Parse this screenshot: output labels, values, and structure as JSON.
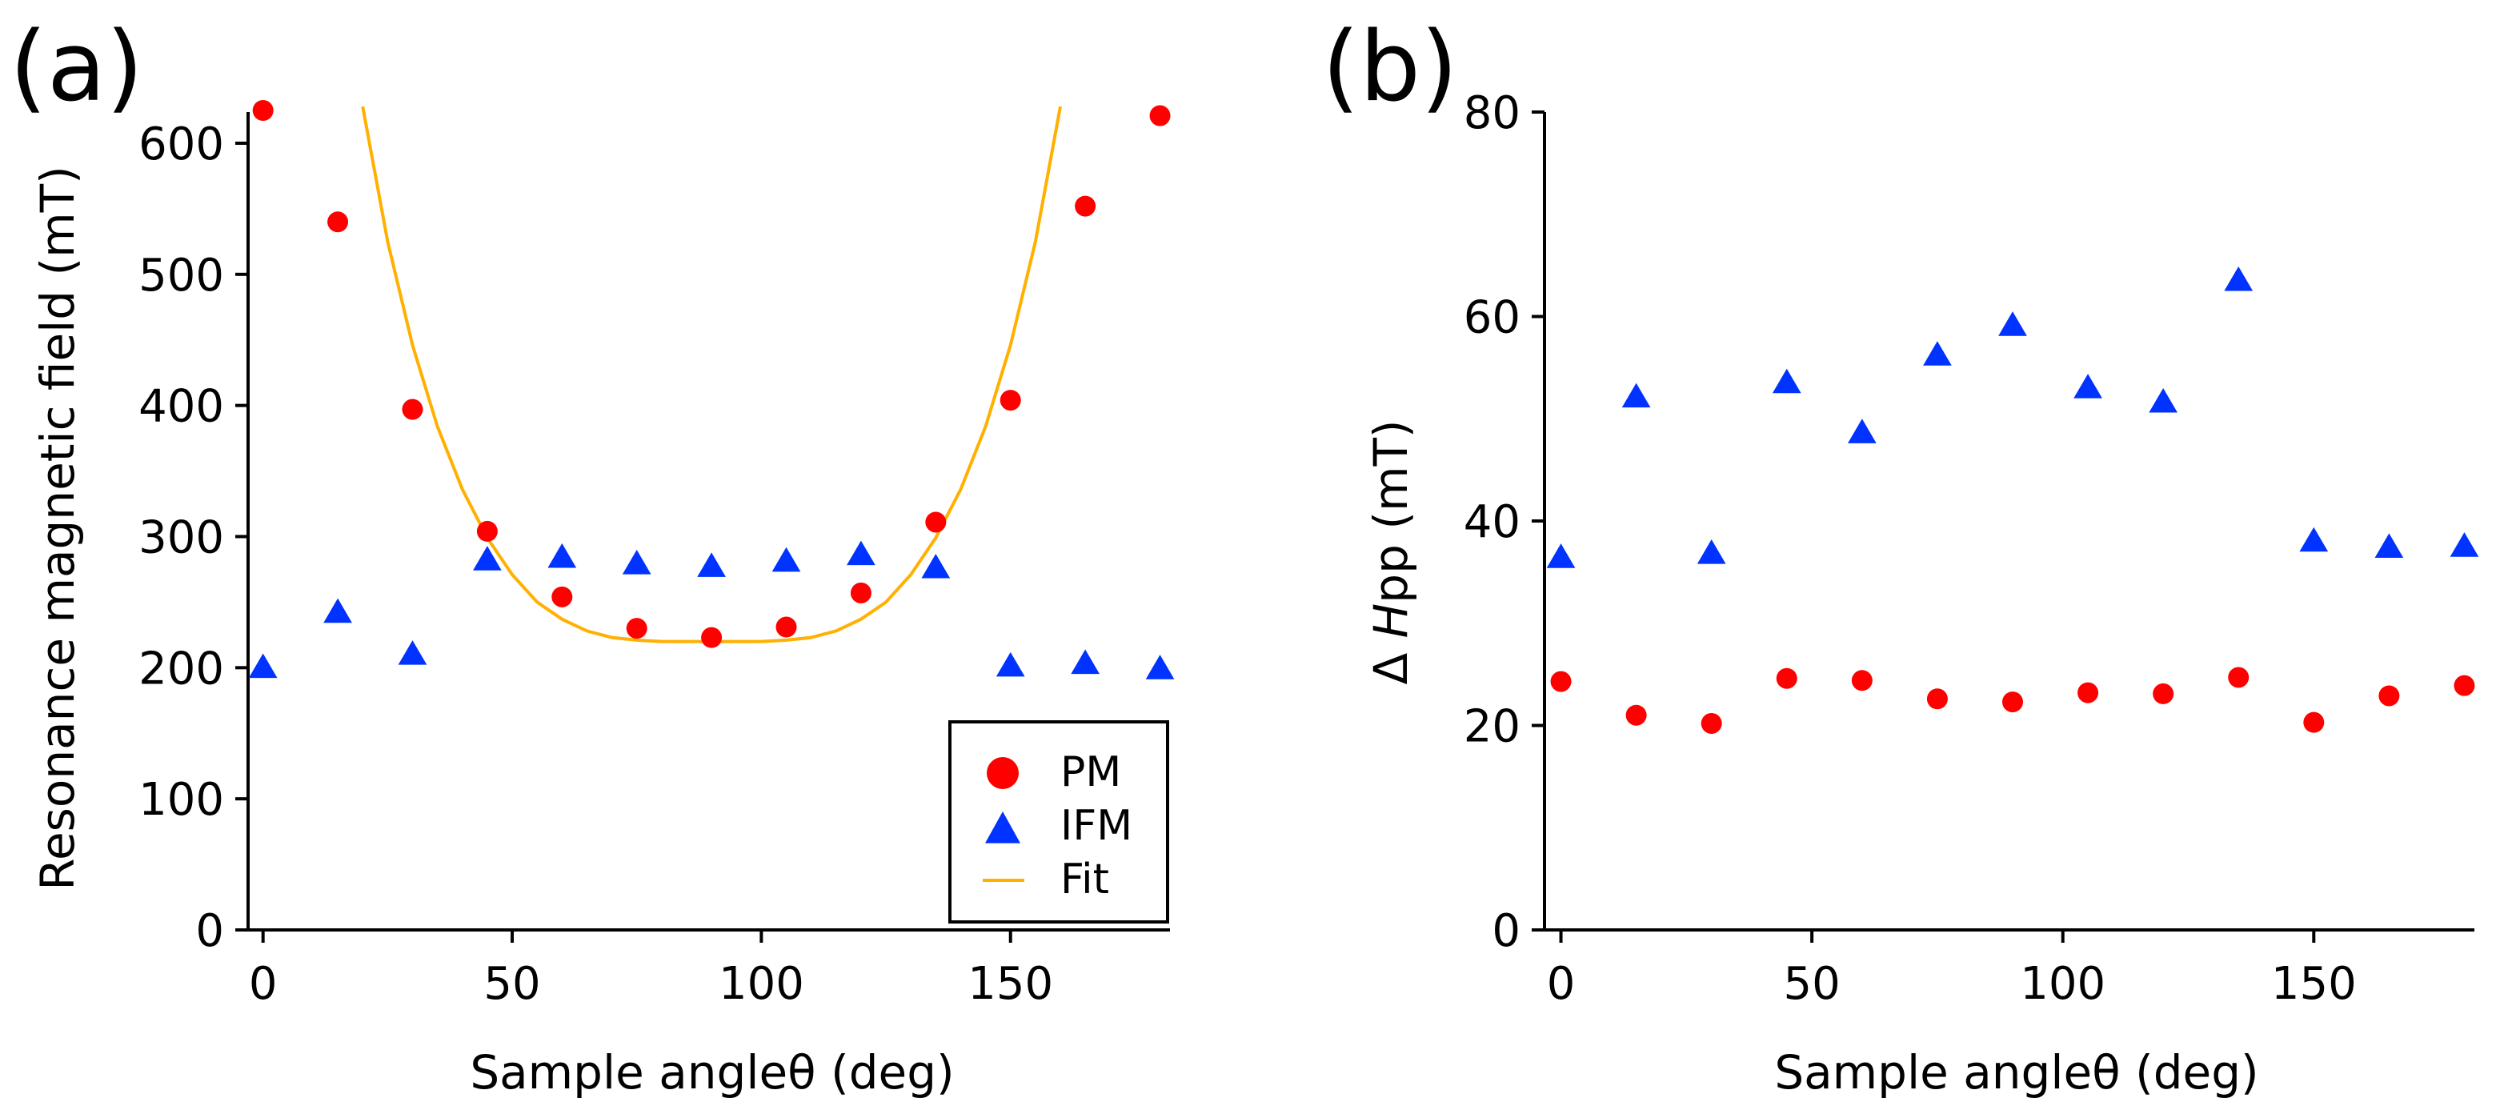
{
  "colors": {
    "pm": "#ff0000",
    "ifm": "#0033ff",
    "fit": "#ffb000",
    "axis": "#000000"
  },
  "chart_data": [
    {
      "panel_label": "(a)",
      "type": "scatter",
      "xlabel": "Sample angleθ (deg)",
      "ylabel": "Resonance magnetic field (mT)",
      "xlim": [
        -3,
        182
      ],
      "ylim": [
        0,
        625
      ],
      "xticks": [
        0,
        50,
        100,
        150
      ],
      "yticks": [
        0,
        100,
        200,
        300,
        400,
        500,
        600
      ],
      "legend": {
        "position": "lower-right",
        "entries": [
          "PM",
          "IFM",
          "Fit"
        ]
      },
      "series": [
        {
          "name": "PM",
          "marker": "circle",
          "x": [
            0,
            15,
            30,
            45,
            60,
            75,
            90,
            105,
            120,
            135,
            150,
            165,
            180
          ],
          "y": [
            625,
            540,
            397,
            304,
            254,
            230,
            223,
            231,
            257,
            311,
            404,
            552,
            621
          ]
        },
        {
          "name": "IFM",
          "marker": "triangle",
          "x": [
            0,
            15,
            30,
            45,
            60,
            75,
            90,
            105,
            120,
            135,
            150,
            165,
            180
          ],
          "y": [
            200,
            242,
            210,
            282,
            284,
            279,
            277,
            281,
            286,
            276,
            201,
            203,
            199
          ]
        },
        {
          "name": "Fit",
          "marker": "line",
          "x": [
            20,
            25,
            30,
            35,
            40,
            45,
            50,
            55,
            60,
            65,
            70,
            75,
            80,
            85,
            90,
            95,
            100,
            105,
            110,
            115,
            120,
            125,
            130,
            135,
            140,
            145,
            150,
            155,
            160
          ],
          "y": [
            628,
            525,
            446,
            384,
            336,
            299,
            271,
            250,
            237,
            228,
            223,
            221,
            220,
            220,
            220,
            220,
            220,
            221,
            223,
            228,
            237,
            250,
            271,
            299,
            336,
            384,
            446,
            525,
            628
          ]
        }
      ]
    },
    {
      "panel_label": "(b)",
      "type": "scatter",
      "xlabel": "Sample angleθ (deg)",
      "ylabel_prefix": "Δ ",
      "ylabel_italic": "H",
      "ylabel_suffix": "pp (mT)",
      "xlim": [
        -2,
        182
      ],
      "ylim": [
        0,
        80
      ],
      "xticks": [
        0,
        50,
        100,
        150
      ],
      "yticks": [
        0,
        20,
        40,
        60,
        80
      ],
      "series": [
        {
          "name": "PM",
          "marker": "circle",
          "x": [
            0,
            15,
            30,
            45,
            60,
            75,
            90,
            105,
            120,
            135,
            150,
            165,
            180
          ],
          "y": [
            24.3,
            21.0,
            20.2,
            24.6,
            24.4,
            22.6,
            22.3,
            23.2,
            23.1,
            24.7,
            20.3,
            22.9,
            23.9
          ]
        },
        {
          "name": "IFM",
          "marker": "triangle",
          "x": [
            0,
            15,
            30,
            45,
            60,
            75,
            90,
            105,
            120,
            135,
            150,
            165,
            180
          ],
          "y": [
            36.4,
            52.1,
            36.8,
            53.5,
            48.6,
            56.2,
            59.1,
            53.0,
            51.6,
            63.5,
            38.0,
            37.4,
            37.5
          ]
        }
      ]
    }
  ]
}
